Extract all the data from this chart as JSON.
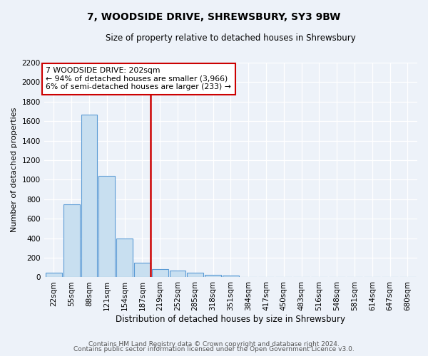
{
  "title": "7, WOODSIDE DRIVE, SHREWSBURY, SY3 9BW",
  "subtitle": "Size of property relative to detached houses in Shrewsbury",
  "xlabel": "Distribution of detached houses by size in Shrewsbury",
  "ylabel": "Number of detached properties",
  "footer_line1": "Contains HM Land Registry data © Crown copyright and database right 2024.",
  "footer_line2": "Contains public sector information licensed under the Open Government Licence v3.0.",
  "bar_labels": [
    "22sqm",
    "55sqm",
    "88sqm",
    "121sqm",
    "154sqm",
    "187sqm",
    "219sqm",
    "252sqm",
    "285sqm",
    "318sqm",
    "351sqm",
    "384sqm",
    "417sqm",
    "450sqm",
    "483sqm",
    "516sqm",
    "548sqm",
    "581sqm",
    "614sqm",
    "647sqm",
    "680sqm"
  ],
  "bar_heights": [
    50,
    745,
    1670,
    1040,
    400,
    150,
    85,
    70,
    45,
    25,
    20,
    0,
    0,
    0,
    0,
    0,
    0,
    0,
    0,
    0,
    0
  ],
  "bar_color": "#c8dff0",
  "bar_edgecolor": "#5b9bd5",
  "ylim": [
    0,
    2200
  ],
  "yticks": [
    0,
    200,
    400,
    600,
    800,
    1000,
    1200,
    1400,
    1600,
    1800,
    2000,
    2200
  ],
  "vline_x": 5.47,
  "vline_color": "#cc0000",
  "annotation_title": "7 WOODSIDE DRIVE: 202sqm",
  "annotation_line1": "← 94% of detached houses are smaller (3,966)",
  "annotation_line2": "6% of semi-detached houses are larger (233) →",
  "background_color": "#edf2f9",
  "grid_color": "#ffffff",
  "title_fontsize": 10,
  "subtitle_fontsize": 8.5,
  "ylabel_fontsize": 8,
  "xlabel_fontsize": 8.5,
  "tick_fontsize": 7.5,
  "footer_fontsize": 6.5
}
